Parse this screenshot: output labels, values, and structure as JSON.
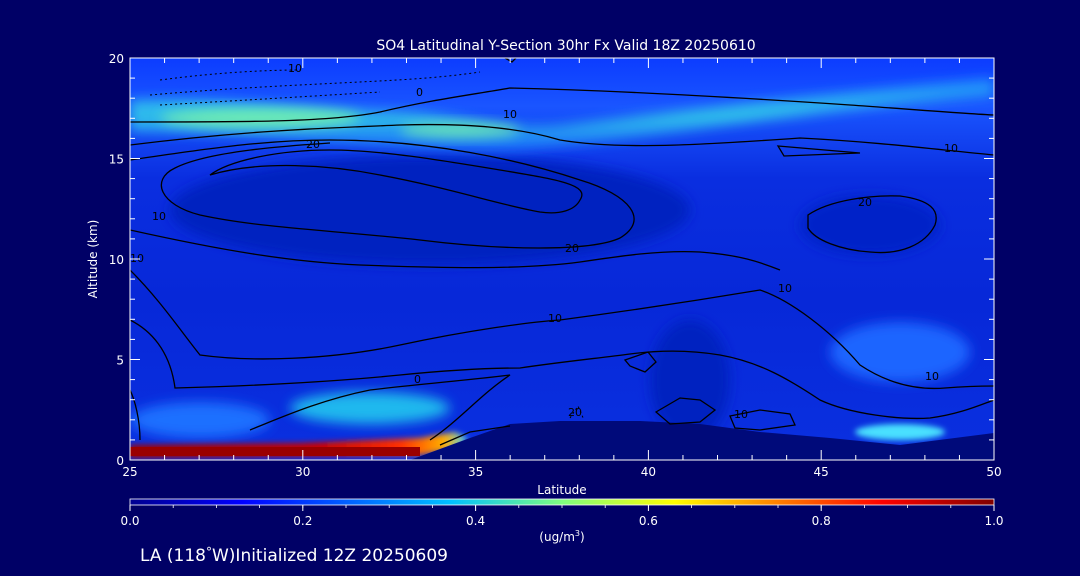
{
  "chart_data": {
    "type": "heatmap",
    "title": "SO4 Latitudinal Y-Section 30hr  Fx Valid 18Z 20250610",
    "xlabel": "Latitude",
    "ylabel": "Altitude (km)",
    "xlim": [
      25,
      50
    ],
    "ylim": [
      0,
      20
    ],
    "x_ticks": [
      "25",
      "30",
      "35",
      "40",
      "45",
      "50"
    ],
    "y_ticks": [
      "0",
      "5",
      "10",
      "15",
      "20"
    ],
    "colorbar": {
      "min": 0.0,
      "max": 1.0,
      "ticks": [
        "0.0",
        "0.2",
        "0.4",
        "0.6",
        "0.8",
        "1.0"
      ],
      "unit_prefix": "(ug/m",
      "unit_sup": "3",
      "unit_suffix": ")",
      "colormap": [
        "#00008f",
        "#0000ff",
        "#00bfff",
        "#7fff7f",
        "#ffff00",
        "#ff7f00",
        "#ff0000",
        "#7f0000"
      ]
    },
    "contour_labels": [
      "10",
      "0",
      "10",
      "20",
      "10",
      "20",
      "10",
      "10",
      "20",
      "10",
      "10",
      "0",
      "10",
      "20",
      "10"
    ],
    "concentration_features": [
      {
        "lat": [
          25,
          34.5
        ],
        "alt": [
          0.0,
          0.6
        ],
        "value": 1.0
      },
      {
        "lat": [
          25,
          36
        ],
        "alt": [
          15.5,
          17.5
        ],
        "value": 0.5
      },
      {
        "lat": [
          30,
          34
        ],
        "alt": [
          1.5,
          2.5
        ],
        "value": 0.4
      },
      {
        "lat": [
          46,
          48.5
        ],
        "alt": [
          0.5,
          1.5
        ],
        "value": 0.45
      }
    ]
  },
  "footer": {
    "location_prefix": "LA (118",
    "degree": "°",
    "location_suffix": "W)Initialized 12Z 20250609"
  }
}
